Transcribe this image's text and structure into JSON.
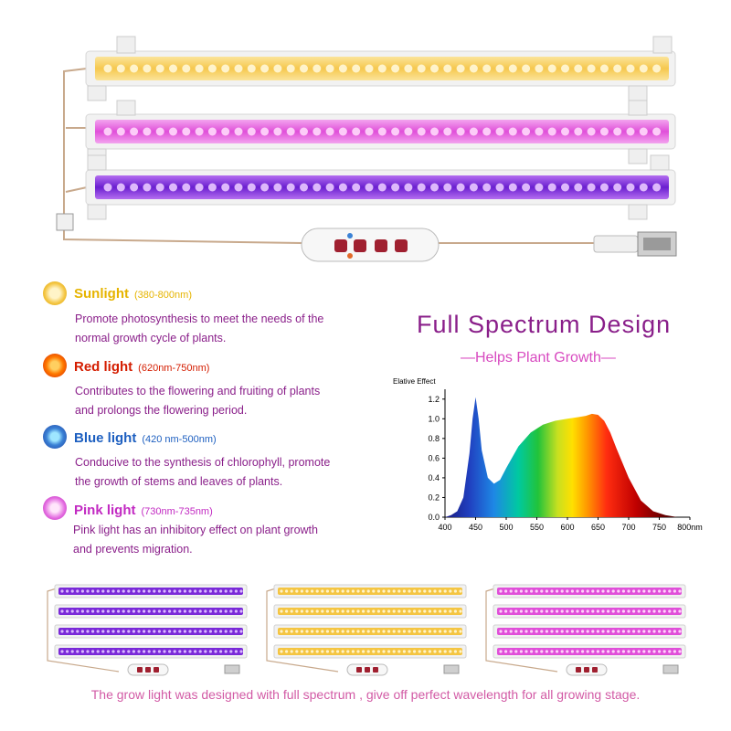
{
  "lights": [
    {
      "key": "sunlight",
      "name": "Sunlight",
      "range": "(380-800nm)",
      "color": "#e6b400",
      "desc_lines": [
        "Promote photosynthesis to meet the needs of the",
        "normal growth cycle of plants."
      ]
    },
    {
      "key": "red",
      "name": "Red light",
      "range": "(620nm-750nm)",
      "color": "#d41d00",
      "desc_lines": [
        "Contributes to the flowering and fruiting of plants",
        "and prolongs the flowering period."
      ]
    },
    {
      "key": "blue",
      "name": "Blue light",
      "range": "(420 nm-500nm)",
      "color": "#1d5fc0",
      "desc_lines": [
        "Conducive to the synthesis of chlorophyll, promote",
        "the growth of stems and leaves of plants."
      ]
    },
    {
      "key": "pink",
      "name": "Pink light",
      "range": "(730nm-735nm)",
      "color": "#c22ac2",
      "desc_lines": [
        "Pink light has an inhibitory effect on plant growth",
        "and prevents migration."
      ]
    }
  ],
  "headline": "Full Spectrum Design",
  "subline": "—Helps Plant Growth—",
  "footer": "The grow light was designed with full spectrum , give off perfect wavelength for all growing stage.",
  "chart_data": {
    "type": "area",
    "ylabel": "Elative Effect",
    "x_tick_labels": [
      "400",
      "450",
      "500",
      "550",
      "600",
      "650",
      "700",
      "750",
      "800nm"
    ],
    "y_tick_labels": [
      "0.0",
      "0.2",
      "0.4",
      "0.6",
      "0.8",
      "1.0",
      "1.2"
    ],
    "xlim": [
      400,
      800
    ],
    "ylim": [
      0,
      1.3
    ],
    "x": [
      400,
      410,
      420,
      430,
      440,
      445,
      450,
      455,
      460,
      470,
      480,
      490,
      500,
      520,
      540,
      560,
      580,
      600,
      610,
      620,
      630,
      640,
      650,
      660,
      670,
      680,
      700,
      720,
      740,
      760,
      780,
      800
    ],
    "values": [
      0.0,
      0.02,
      0.06,
      0.2,
      0.65,
      1.0,
      1.22,
      1.0,
      0.68,
      0.4,
      0.34,
      0.38,
      0.5,
      0.72,
      0.86,
      0.94,
      0.98,
      1.0,
      1.01,
      1.02,
      1.03,
      1.05,
      1.04,
      0.98,
      0.86,
      0.7,
      0.4,
      0.17,
      0.06,
      0.02,
      0.0,
      0.0
    ]
  },
  "colors": {
    "sunlight": "#f4c542",
    "red": "#d41d00",
    "blue": "#1d5fc0",
    "pink": "#e36ae0",
    "purple": "#8a1f8a"
  }
}
